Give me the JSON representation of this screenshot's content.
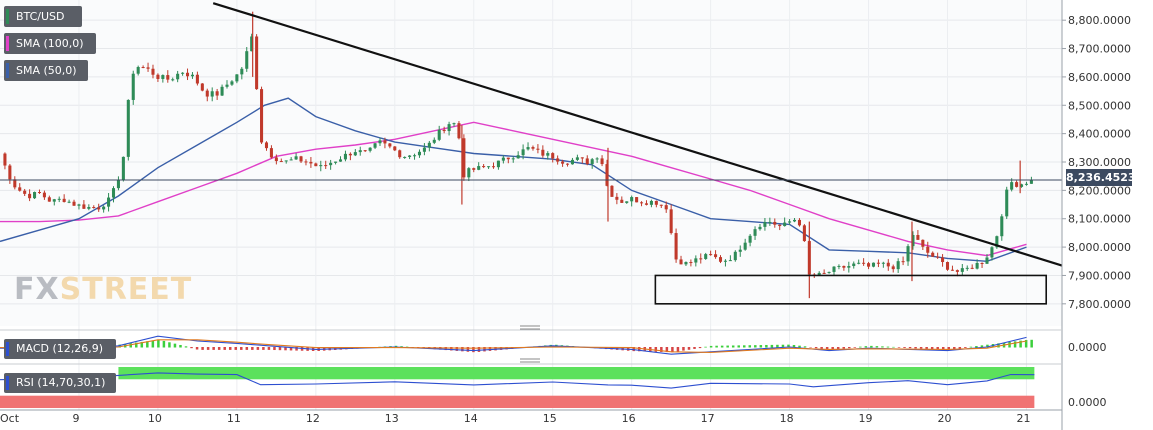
{
  "legend": {
    "symbol": "BTC/USD",
    "sma100": "SMA (100,0)",
    "sma50": "SMA (50,0)"
  },
  "indicators": {
    "macd_label": "MACD (12,26,9)",
    "rsi_label": "RSI (14,70,30,1)"
  },
  "watermark": {
    "fx": "FX",
    "street": "STREET"
  },
  "current_price": "8,236.4523",
  "colors": {
    "up": "#2e8b57",
    "down": "#c0392b",
    "sma100": "#e040c8",
    "sma50": "#3a5fa8",
    "trendline": "#111111",
    "rsi_band_green": "#5ce15c",
    "rsi_band_red": "#f07373"
  },
  "chart_data": {
    "type": "candlestick",
    "x_labels": [
      "Oct",
      "9",
      "10",
      "11",
      "12",
      "13",
      "14",
      "15",
      "16",
      "17",
      "18",
      "19",
      "20",
      "21"
    ],
    "x_positions_days": [
      8,
      9,
      10,
      11,
      12,
      13,
      14,
      15,
      16,
      17,
      18,
      19,
      20,
      21
    ],
    "y_ticks": [
      "8,800.0000",
      "8,700.0000",
      "8,600.0000",
      "8,500.0000",
      "8,400.0000",
      "8,300.0000",
      "8,200.0000",
      "8,100.0000",
      "8,000.0000",
      "7,900.0000",
      "7,800.0000"
    ],
    "y_tick_values": [
      8800,
      8700,
      8600,
      8500,
      8400,
      8300,
      8200,
      8100,
      8000,
      7900,
      7800
    ],
    "ylim": [
      7750,
      8850
    ],
    "xlim": [
      8,
      21.45
    ],
    "close_path": [
      [
        8.0,
        8330
      ],
      [
        8.1,
        8260
      ],
      [
        8.2,
        8210
      ],
      [
        8.35,
        8180
      ],
      [
        8.5,
        8190
      ],
      [
        8.65,
        8160
      ],
      [
        8.8,
        8170
      ],
      [
        8.95,
        8150
      ],
      [
        9.1,
        8140
      ],
      [
        9.25,
        8140
      ],
      [
        9.4,
        8170
      ],
      [
        9.55,
        8280
      ],
      [
        9.62,
        8500
      ],
      [
        9.7,
        8640
      ],
      [
        9.85,
        8630
      ],
      [
        10.0,
        8600
      ],
      [
        10.15,
        8590
      ],
      [
        10.3,
        8620
      ],
      [
        10.45,
        8600
      ],
      [
        10.6,
        8540
      ],
      [
        10.75,
        8540
      ],
      [
        10.9,
        8580
      ],
      [
        11.05,
        8620
      ],
      [
        11.2,
        8750
      ],
      [
        11.3,
        8380
      ],
      [
        11.45,
        8320
      ],
      [
        11.6,
        8300
      ],
      [
        11.75,
        8310
      ],
      [
        11.9,
        8300
      ],
      [
        12.05,
        8280
      ],
      [
        12.2,
        8300
      ],
      [
        12.35,
        8320
      ],
      [
        12.5,
        8340
      ],
      [
        12.65,
        8330
      ],
      [
        12.8,
        8370
      ],
      [
        12.95,
        8350
      ],
      [
        13.1,
        8320
      ],
      [
        13.25,
        8330
      ],
      [
        13.4,
        8350
      ],
      [
        13.55,
        8400
      ],
      [
        13.7,
        8440
      ],
      [
        13.8,
        8430
      ],
      [
        13.85,
        8250
      ],
      [
        13.95,
        8270
      ],
      [
        14.1,
        8280
      ],
      [
        14.25,
        8290
      ],
      [
        14.4,
        8310
      ],
      [
        14.55,
        8330
      ],
      [
        14.7,
        8350
      ],
      [
        14.85,
        8330
      ],
      [
        15.0,
        8320
      ],
      [
        15.15,
        8300
      ],
      [
        15.3,
        8310
      ],
      [
        15.45,
        8300
      ],
      [
        15.6,
        8330
      ],
      [
        15.7,
        8200
      ],
      [
        15.85,
        8160
      ],
      [
        16.0,
        8170
      ],
      [
        16.15,
        8160
      ],
      [
        16.3,
        8160
      ],
      [
        16.45,
        8140
      ],
      [
        16.55,
        7960
      ],
      [
        16.7,
        7940
      ],
      [
        16.85,
        7960
      ],
      [
        17.0,
        7970
      ],
      [
        17.15,
        7950
      ],
      [
        17.3,
        7970
      ],
      [
        17.45,
        8030
      ],
      [
        17.6,
        8080
      ],
      [
        17.75,
        8090
      ],
      [
        17.9,
        8070
      ],
      [
        18.05,
        8100
      ],
      [
        18.15,
        8080
      ],
      [
        18.25,
        7900
      ],
      [
        18.4,
        7900
      ],
      [
        18.55,
        7920
      ],
      [
        18.7,
        7930
      ],
      [
        18.85,
        7940
      ],
      [
        19.0,
        7930
      ],
      [
        19.15,
        7940
      ],
      [
        19.3,
        7930
      ],
      [
        19.45,
        7950
      ],
      [
        19.55,
        8050
      ],
      [
        19.7,
        7990
      ],
      [
        19.85,
        7960
      ],
      [
        20.0,
        7930
      ],
      [
        20.15,
        7910
      ],
      [
        20.3,
        7930
      ],
      [
        20.45,
        7950
      ],
      [
        20.55,
        7990
      ],
      [
        20.65,
        8060
      ],
      [
        20.72,
        8170
      ],
      [
        20.8,
        8230
      ],
      [
        20.9,
        8220
      ],
      [
        21.0,
        8230
      ],
      [
        21.1,
        8236
      ]
    ],
    "series": [
      {
        "name": "SMA (100,0)",
        "points": [
          [
            8.0,
            8090
          ],
          [
            8.5,
            8090
          ],
          [
            9.0,
            8095
          ],
          [
            9.5,
            8110
          ],
          [
            10.0,
            8160
          ],
          [
            10.5,
            8210
          ],
          [
            11.0,
            8260
          ],
          [
            11.5,
            8320
          ],
          [
            12.0,
            8345
          ],
          [
            12.5,
            8360
          ],
          [
            13.0,
            8380
          ],
          [
            13.5,
            8410
          ],
          [
            14.0,
            8440
          ],
          [
            14.5,
            8410
          ],
          [
            15.0,
            8380
          ],
          [
            15.5,
            8350
          ],
          [
            16.0,
            8320
          ],
          [
            16.5,
            8280
          ],
          [
            17.0,
            8240
          ],
          [
            17.5,
            8200
          ],
          [
            18.0,
            8150
          ],
          [
            18.5,
            8100
          ],
          [
            19.0,
            8060
          ],
          [
            19.5,
            8020
          ],
          [
            20.0,
            7990
          ],
          [
            20.5,
            7970
          ],
          [
            21.0,
            8010
          ]
        ]
      },
      {
        "name": "SMA (50,0)",
        "points": [
          [
            8.0,
            8020
          ],
          [
            8.5,
            8060
          ],
          [
            9.0,
            8100
          ],
          [
            9.5,
            8180
          ],
          [
            10.0,
            8280
          ],
          [
            10.5,
            8360
          ],
          [
            11.0,
            8440
          ],
          [
            11.35,
            8500
          ],
          [
            11.65,
            8525
          ],
          [
            12.0,
            8460
          ],
          [
            12.5,
            8410
          ],
          [
            13.0,
            8370
          ],
          [
            13.5,
            8350
          ],
          [
            14.0,
            8330
          ],
          [
            14.5,
            8320
          ],
          [
            15.0,
            8310
          ],
          [
            15.5,
            8290
          ],
          [
            16.0,
            8200
          ],
          [
            16.5,
            8150
          ],
          [
            17.0,
            8100
          ],
          [
            17.5,
            8090
          ],
          [
            18.0,
            8080
          ],
          [
            18.5,
            7990
          ],
          [
            19.0,
            7985
          ],
          [
            19.5,
            7980
          ],
          [
            20.0,
            7960
          ],
          [
            20.5,
            7950
          ],
          [
            21.0,
            8000
          ]
        ]
      }
    ],
    "trendline": [
      [
        10.7,
        8860
      ],
      [
        21.45,
        7935
      ]
    ],
    "highlight_box": {
      "x": [
        16.3,
        21.25
      ],
      "y": [
        7800,
        7900
      ]
    },
    "current_price_value": 8236.4523,
    "macd": {
      "label": "MACD (12,26,9)",
      "y_tick": "0.0000",
      "ylim": [
        -1,
        1
      ],
      "macd_line": [
        [
          8,
          -0.1
        ],
        [
          9,
          -0.2
        ],
        [
          9.5,
          0.1
        ],
        [
          10,
          0.9
        ],
        [
          10.5,
          0.5
        ],
        [
          11,
          0.3
        ],
        [
          11.4,
          0.1
        ],
        [
          12,
          -0.2
        ],
        [
          13,
          0
        ],
        [
          14,
          -0.3
        ],
        [
          15,
          0.1
        ],
        [
          16,
          -0.2
        ],
        [
          16.5,
          -0.6
        ],
        [
          17,
          -0.4
        ],
        [
          18,
          0
        ],
        [
          18.5,
          -0.3
        ],
        [
          19,
          -0.1
        ],
        [
          20,
          -0.3
        ],
        [
          20.5,
          0
        ],
        [
          21,
          0.8
        ]
      ],
      "signal_line": [
        [
          8,
          -0.05
        ],
        [
          9,
          -0.1
        ],
        [
          9.5,
          0.0
        ],
        [
          10,
          0.6
        ],
        [
          10.5,
          0.6
        ],
        [
          11,
          0.4
        ],
        [
          11.4,
          0.2
        ],
        [
          12,
          -0.05
        ],
        [
          13,
          -0.05
        ],
        [
          14,
          -0.1
        ],
        [
          15,
          0.0
        ],
        [
          16,
          -0.05
        ],
        [
          16.5,
          -0.4
        ],
        [
          17,
          -0.45
        ],
        [
          18,
          -0.1
        ],
        [
          18.5,
          -0.2
        ],
        [
          19,
          -0.15
        ],
        [
          20,
          -0.2
        ],
        [
          20.5,
          -0.1
        ],
        [
          21,
          0.5
        ]
      ]
    },
    "rsi": {
      "label": "RSI (14,70,30,1)",
      "y_tick": "0.0000",
      "ylim": [
        0,
        100
      ],
      "bands": {
        "green": [
          70,
          100
        ],
        "red": [
          0,
          30
        ]
      },
      "line": [
        [
          8,
          70
        ],
        [
          9,
          72
        ],
        [
          9.5,
          80
        ],
        [
          10,
          86
        ],
        [
          10.5,
          82
        ],
        [
          11,
          80
        ],
        [
          11.3,
          58
        ],
        [
          12,
          60
        ],
        [
          13,
          62
        ],
        [
          14,
          58
        ],
        [
          15,
          62
        ],
        [
          15.7,
          58
        ],
        [
          16,
          56
        ],
        [
          16.5,
          50
        ],
        [
          17,
          60
        ],
        [
          18,
          58
        ],
        [
          18.3,
          52
        ],
        [
          19,
          60
        ],
        [
          19.5,
          68
        ],
        [
          20,
          58
        ],
        [
          20.5,
          66
        ],
        [
          20.8,
          82
        ],
        [
          21.1,
          80
        ]
      ]
    }
  }
}
